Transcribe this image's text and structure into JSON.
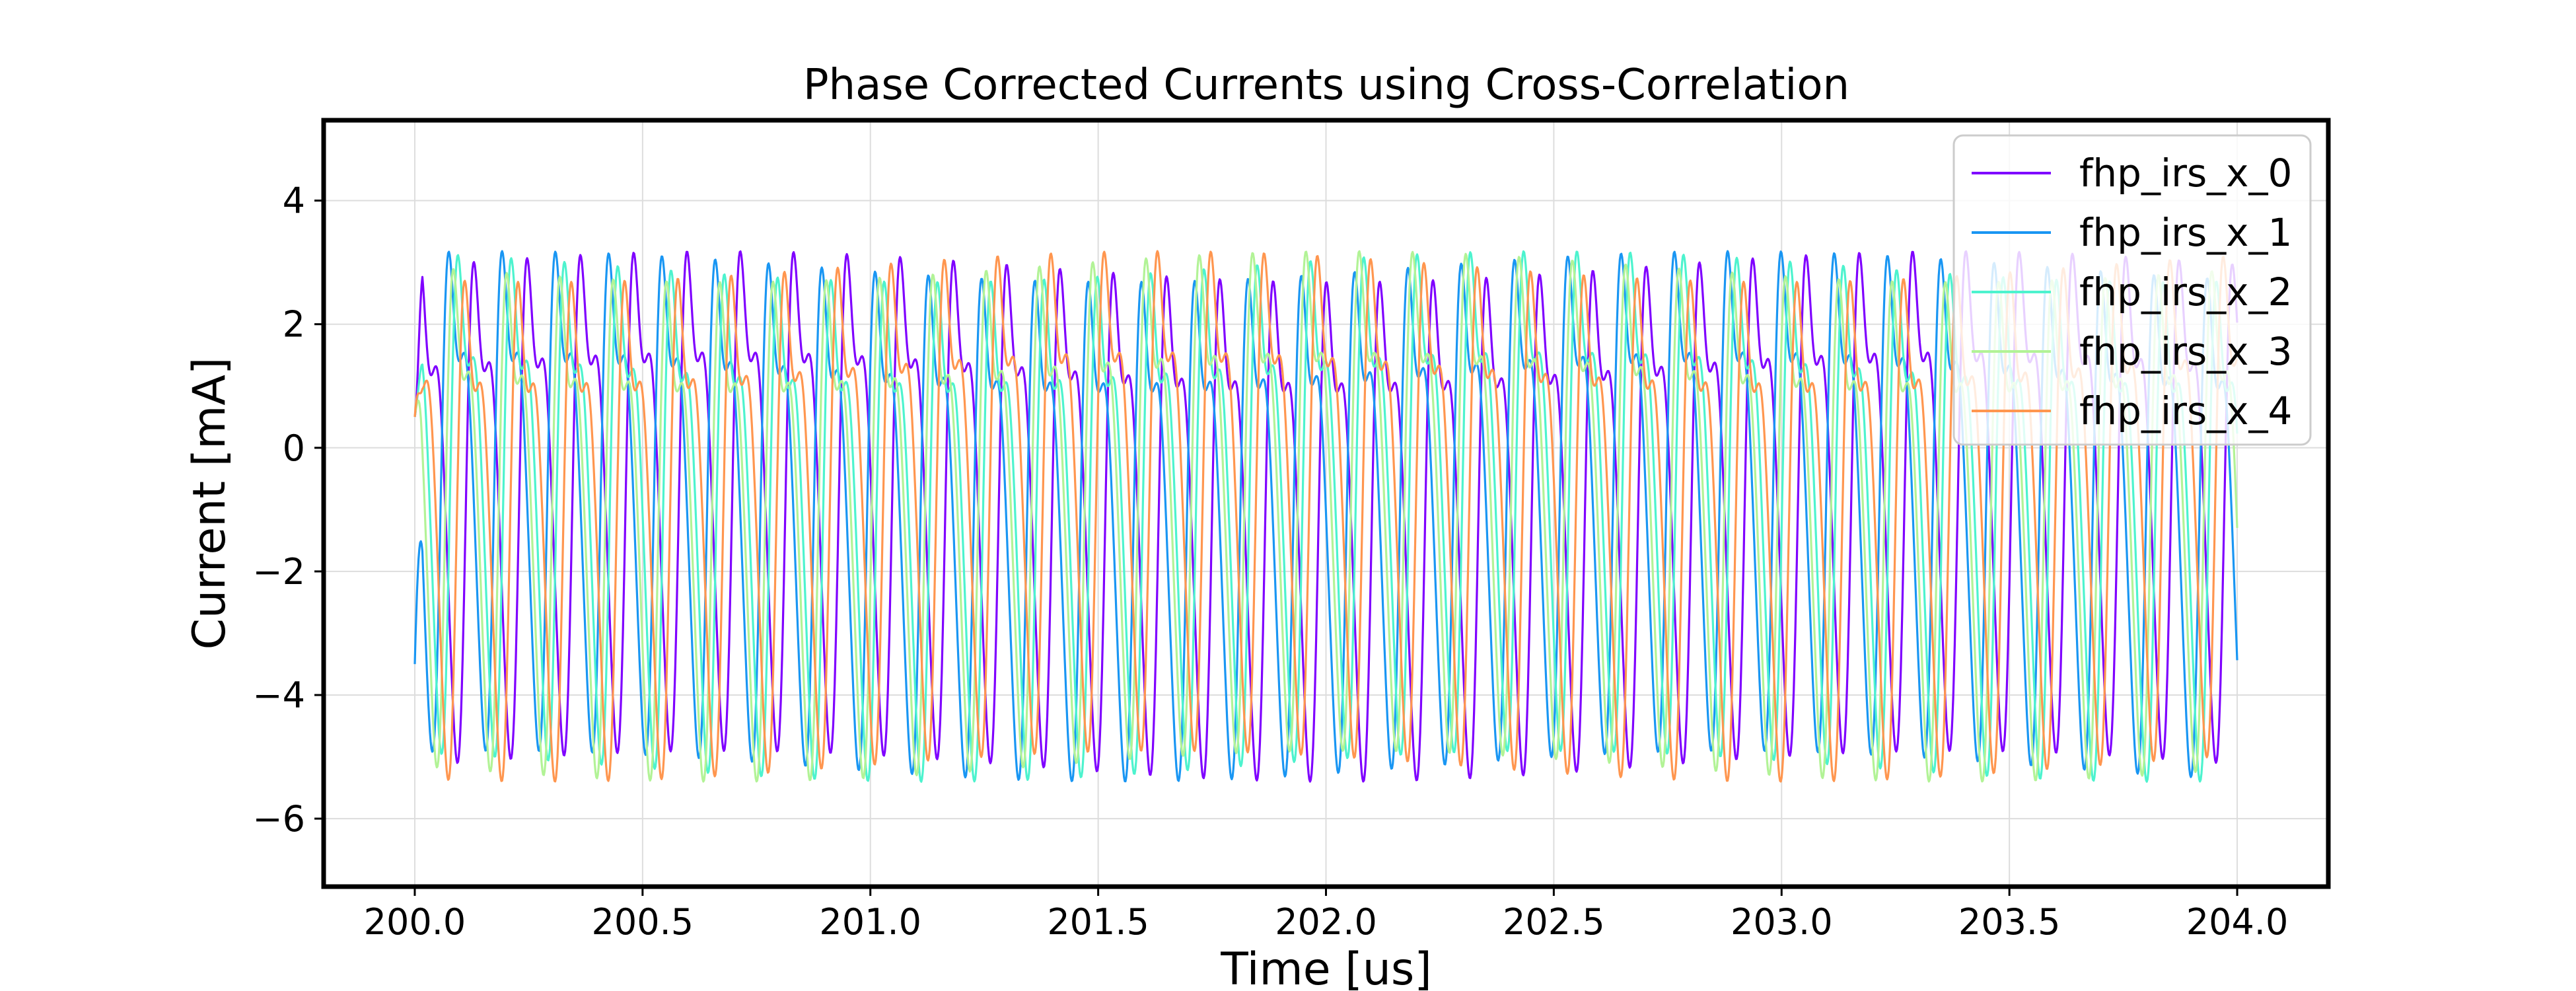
{
  "chart_data": {
    "type": "line",
    "title": "Phase Corrected Currents using Cross-Correlation",
    "xlabel": "Time [us]",
    "ylabel": "Current [mA]",
    "xlim": [
      199.8,
      204.2
    ],
    "ylim": [
      -7.1,
      5.3
    ],
    "xticks": [
      200.0,
      200.5,
      201.0,
      201.5,
      202.0,
      202.5,
      203.0,
      203.5,
      204.0
    ],
    "xtick_labels": [
      "200.0",
      "200.5",
      "201.0",
      "201.5",
      "202.0",
      "202.5",
      "203.0",
      "203.5",
      "204.0"
    ],
    "yticks": [
      -6,
      -4,
      -2,
      0,
      2,
      4
    ],
    "ytick_labels": [
      "−6",
      "−4",
      "−2",
      "0",
      "2",
      "4"
    ],
    "grid": true,
    "legend_position": "top-right",
    "x_range": [
      200.0,
      204.0
    ],
    "series": [
      {
        "name": "fhp_irs_x_0",
        "color": "#7f00ff"
      },
      {
        "name": "fhp_irs_x_1",
        "color": "#1996f3"
      },
      {
        "name": "fhp_irs_x_2",
        "color": "#4df3ce"
      },
      {
        "name": "fhp_irs_x_3",
        "color": "#b2f396"
      },
      {
        "name": "fhp_irs_x_4",
        "color": "#ff964f"
      }
    ]
  }
}
